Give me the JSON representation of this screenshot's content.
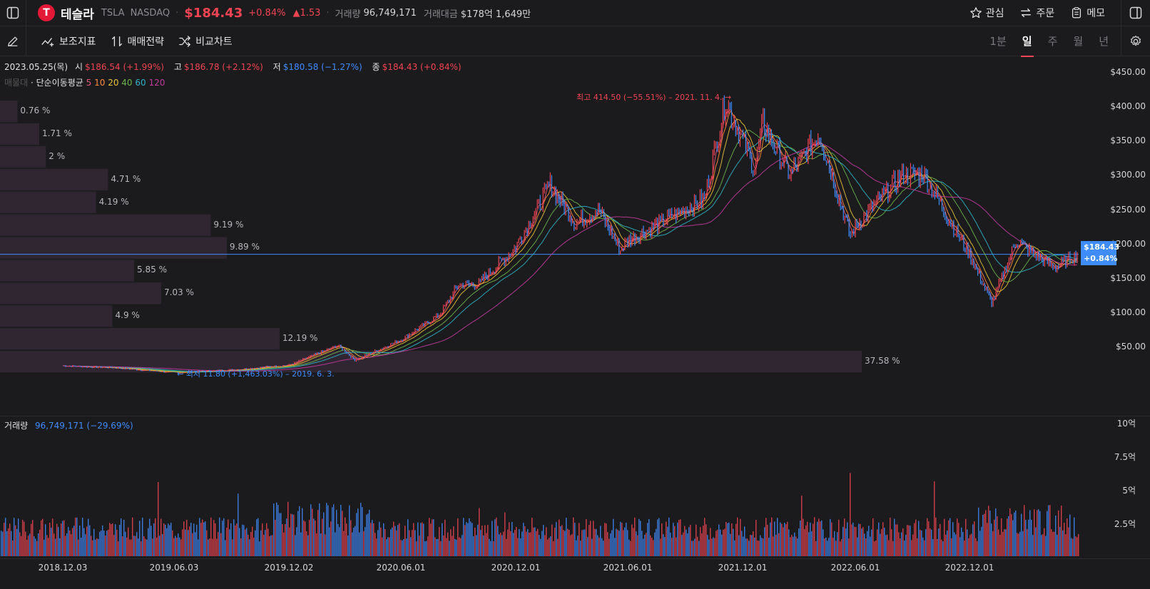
{
  "header": {
    "name": "테슬라",
    "ticker": "TSLA",
    "exchange": "NASDAQ",
    "price": "$184.43",
    "change_pct": "+0.84%",
    "change_abs": "▲1.53",
    "volume_label": "거래량",
    "volume_value": "96,749,171",
    "amount_label": "거래대금",
    "amount_value": "$178억 1,649만",
    "actions": {
      "watch": "관심",
      "order": "주문",
      "memo": "메모"
    }
  },
  "toolbar": {
    "indicators": "보조지표",
    "strategy": "매매전략",
    "compare": "비교차트",
    "periods": [
      "1분",
      "일",
      "주",
      "월",
      "년"
    ],
    "active_period": "일"
  },
  "ohlc": {
    "date": "2023.05.25(목)",
    "open_label": "시",
    "open": "$186.54 (+1.99%)",
    "high_label": "고",
    "high": "$186.78 (+2.12%)",
    "low_label": "저",
    "low": "$180.58 (−1.27%)",
    "close_label": "종",
    "close": "$184.43 (+0.84%)"
  },
  "ma_legend": {
    "profile_label": "매물대",
    "label": "· 단순이동평균",
    "periods": [
      {
        "v": "5",
        "color": "#e0557a"
      },
      {
        "v": "10",
        "color": "#ff8a3d"
      },
      {
        "v": "20",
        "color": "#e8c33a"
      },
      {
        "v": "40",
        "color": "#6cb44a"
      },
      {
        "v": "60",
        "color": "#2fb3c7"
      },
      {
        "v": "120",
        "color": "#c23a9e"
      }
    ]
  },
  "price_axis": [
    "$450.00",
    "$400.00",
    "$350.00",
    "$300.00",
    "$250.00",
    "$200.00",
    "$150.00",
    "$100.00",
    "$50.00"
  ],
  "current_price_tag": {
    "price": "$184.43",
    "pct": "+0.84%"
  },
  "volume_profile": [
    "0.76 %",
    "1.71 %",
    "2 %",
    "4.71 %",
    "4.19 %",
    "9.19 %",
    "9.89 %",
    "5.85 %",
    "7.03 %",
    "4.9 %",
    "12.19 %",
    "37.58 %"
  ],
  "volume_profile_pct": [
    0.76,
    1.71,
    2,
    4.71,
    4.19,
    9.19,
    9.89,
    5.85,
    7.03,
    4.9,
    12.19,
    37.58
  ],
  "high_marker": "최고 414.50 (−55.51%) – 2021. 11. 4. →",
  "low_marker": "← 최저 11.80 (+1,463.03%) – 2019. 6. 3.",
  "volume": {
    "label": "거래량",
    "value": "96,749,171 (−29.69%)"
  },
  "volume_axis": [
    "10억",
    "7.5억",
    "5억",
    "2.5억"
  ],
  "dates": [
    "2018.12.03",
    "2019.06.03",
    "2019.12.02",
    "2020.06.01",
    "2020.12.01",
    "2021.06.01",
    "2021.12.01",
    "2022.06.01",
    "2022.12.01"
  ],
  "colors": {
    "up": "#f04452",
    "down": "#3f8cff",
    "profile": "#2f2631"
  },
  "chart_data": {
    "type": "line",
    "title": "",
    "x": [
      "2018.12.03",
      "2019.03.01",
      "2019.06.03",
      "2019.09.03",
      "2019.12.02",
      "2020.02.20",
      "2020.03.18",
      "2020.06.01",
      "2020.08.01",
      "2020.09.01",
      "2020.10.01",
      "2020.12.01",
      "2021.01.26",
      "2021.03.08",
      "2021.04.14",
      "2021.05.20",
      "2021.06.01",
      "2021.08.01",
      "2021.10.01",
      "2021.11.04",
      "2021.12.20",
      "2022.01.03",
      "2022.02.15",
      "2022.04.04",
      "2022.05.24",
      "2022.06.01",
      "2022.08.15",
      "2022.09.20",
      "2022.11.01",
      "2022.12.01",
      "2023.01.06",
      "2023.02.15",
      "2023.03.15",
      "2023.04.20",
      "2023.05.25"
    ],
    "close": [
      22,
      19,
      12,
      16,
      23,
      52,
      30,
      60,
      96,
      140,
      140,
      195,
      285,
      230,
      250,
      190,
      205,
      235,
      265,
      409,
      310,
      375,
      300,
      360,
      210,
      225,
      300,
      300,
      230,
      185,
      113,
      205,
      185,
      165,
      184.43
    ],
    "ylim": [
      0,
      450
    ],
    "ylabel_ticks": [
      50,
      100,
      150,
      200,
      250,
      300,
      350,
      400,
      450
    ],
    "volume_axis_max": 1000000000
  }
}
